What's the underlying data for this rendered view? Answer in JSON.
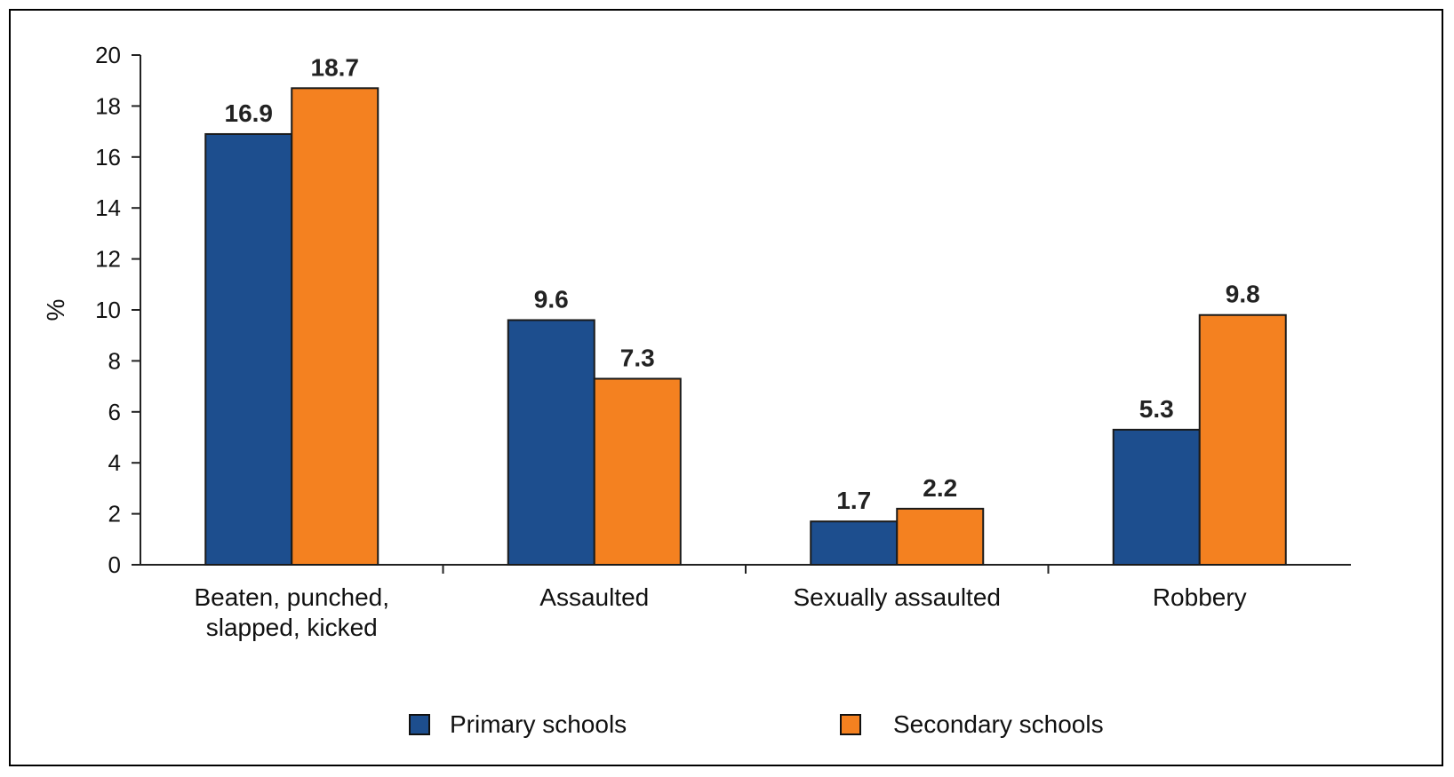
{
  "chart_data": {
    "type": "bar",
    "categories": [
      [
        "Beaten, punched,",
        "slapped, kicked"
      ],
      [
        "Assaulted"
      ],
      [
        "Sexually assaulted"
      ],
      [
        "Robbery"
      ]
    ],
    "series": [
      {
        "name": "Primary schools",
        "values": [
          16.9,
          9.6,
          1.7,
          5.3
        ],
        "color": "#1d4e8e"
      },
      {
        "name": "Secondary schools",
        "values": [
          18.7,
          7.3,
          2.2,
          9.8
        ],
        "color": "#f48120"
      }
    ],
    "ylabel": "%",
    "ylim": [
      0,
      20
    ],
    "yticks": [
      0,
      2,
      4,
      6,
      8,
      10,
      12,
      14,
      16,
      18,
      20
    ],
    "data_labels": true,
    "legend_position": "bottom",
    "grid": false
  }
}
